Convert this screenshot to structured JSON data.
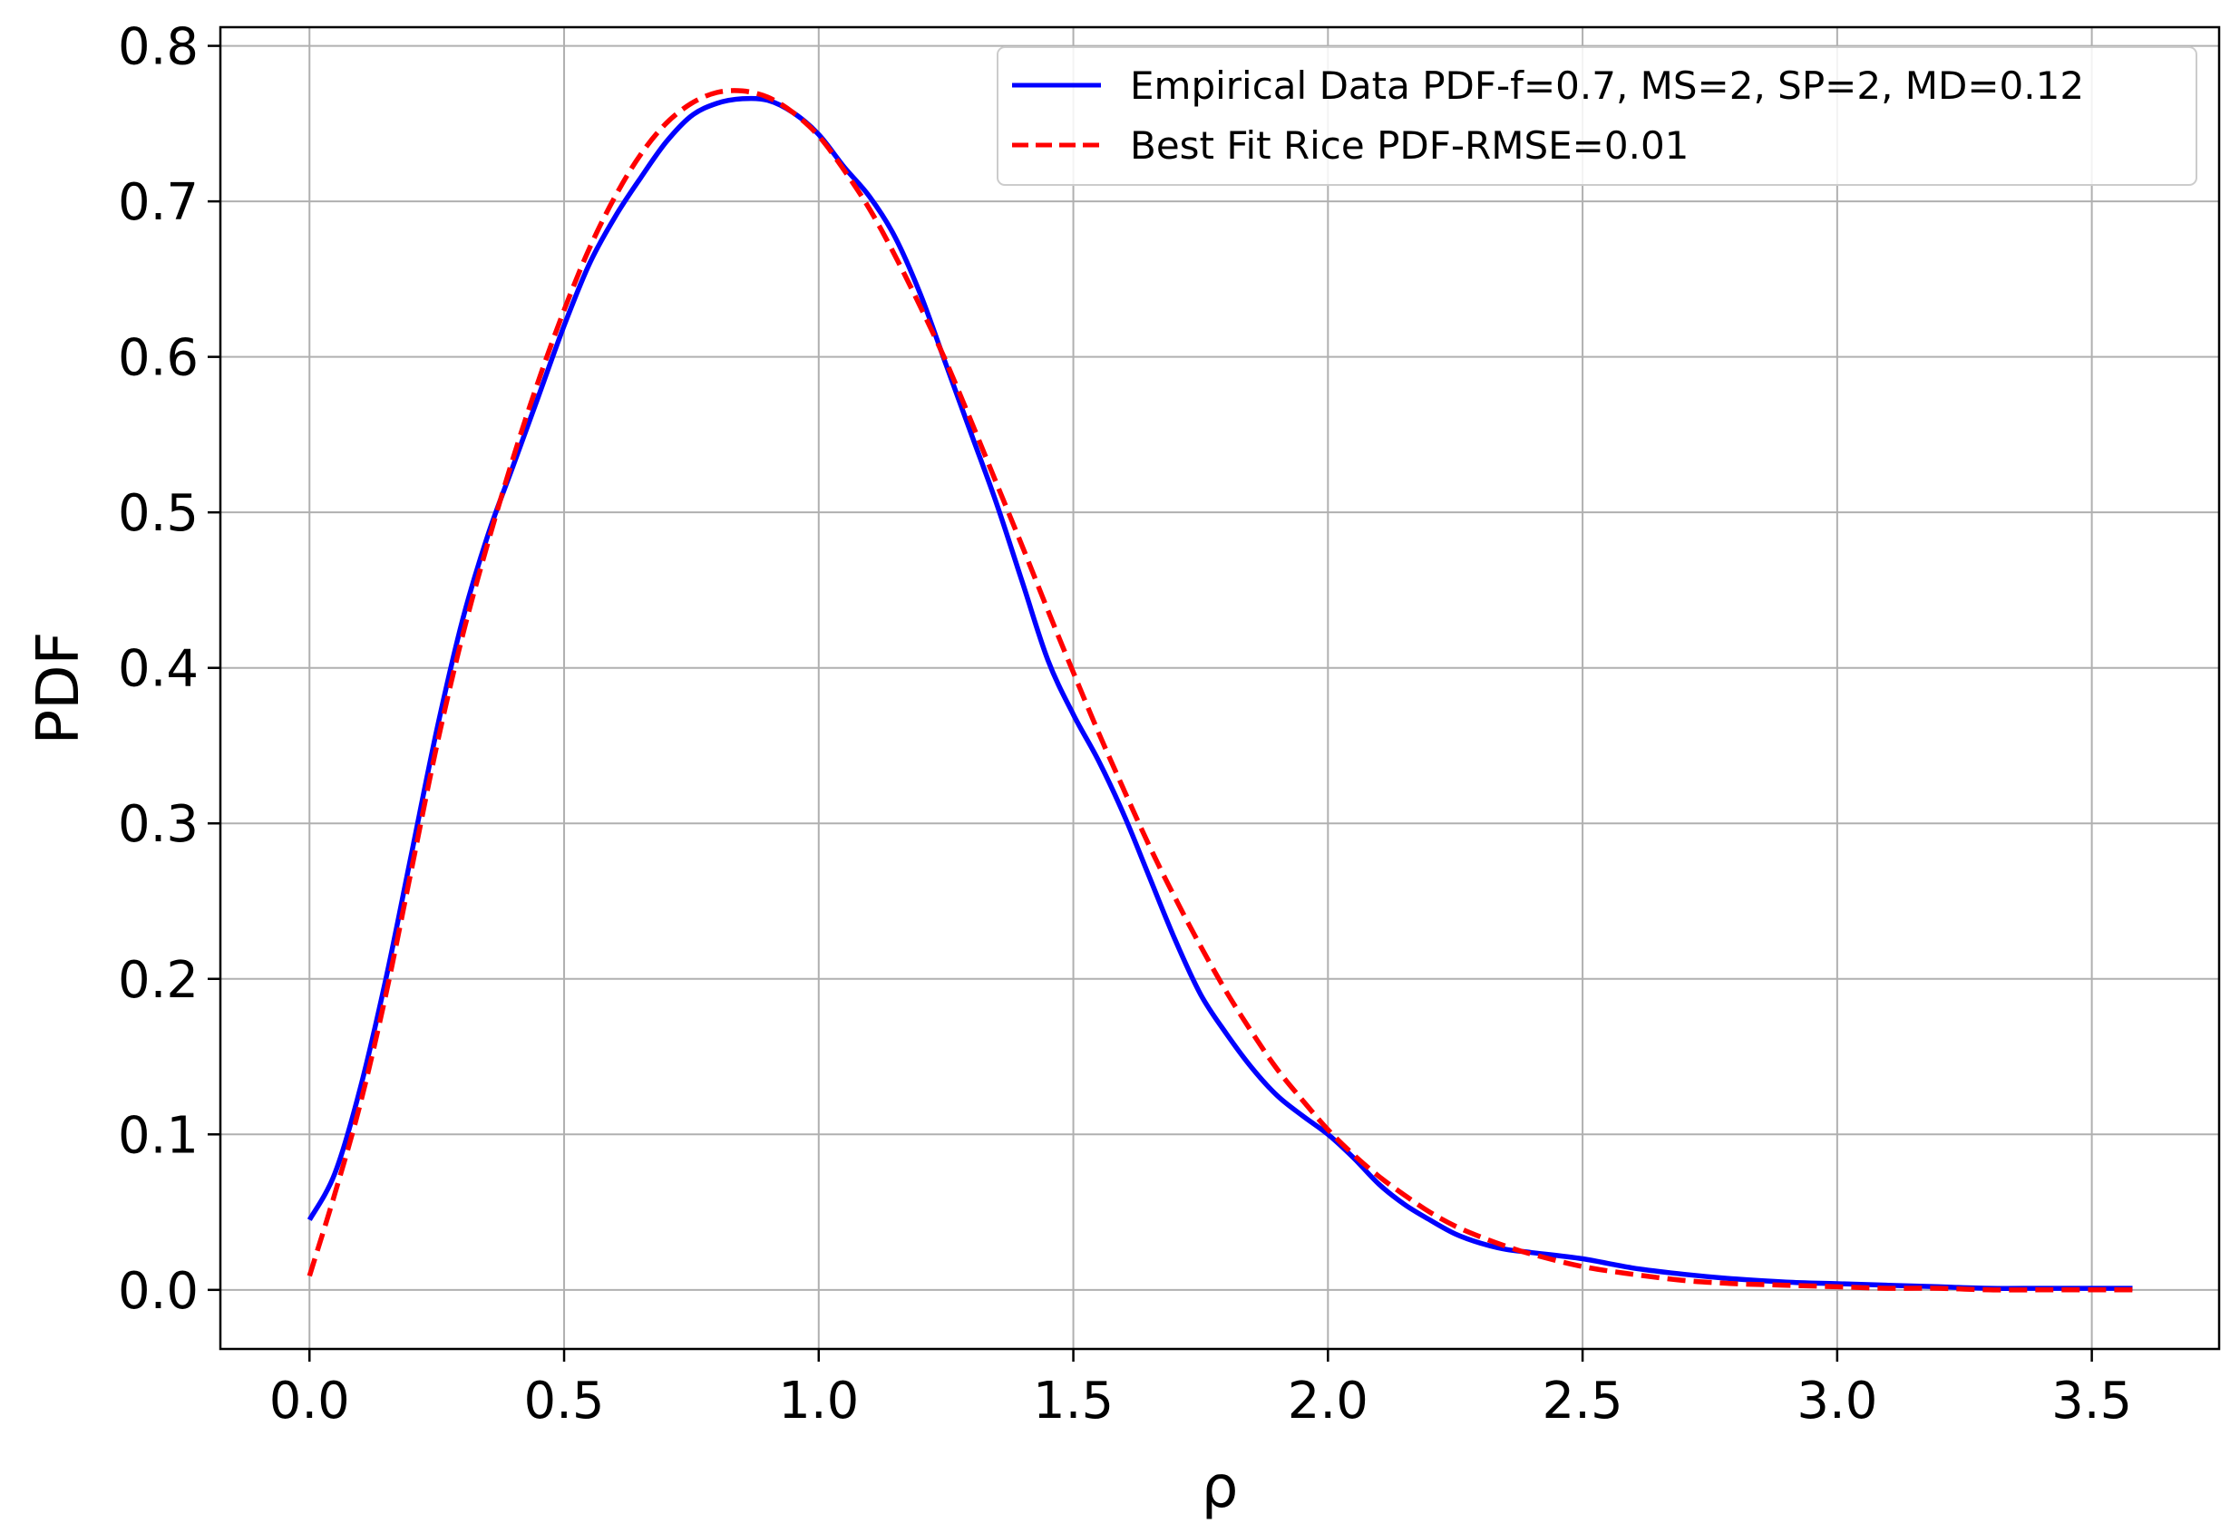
{
  "chart_data": {
    "type": "line",
    "xlabel": "ρ",
    "ylabel": "PDF",
    "xlim": [
      -0.175,
      3.75
    ],
    "ylim": [
      -0.038,
      0.812
    ],
    "xticks": [
      0.0,
      0.5,
      1.0,
      1.5,
      2.0,
      2.5,
      3.0,
      3.5
    ],
    "xtick_labels": [
      "0.0",
      "0.5",
      "1.0",
      "1.5",
      "2.0",
      "2.5",
      "3.0",
      "3.5"
    ],
    "yticks": [
      0.0,
      0.1,
      0.2,
      0.3,
      0.4,
      0.5,
      0.6,
      0.7,
      0.8
    ],
    "ytick_labels": [
      "0.0",
      "0.1",
      "0.2",
      "0.3",
      "0.4",
      "0.5",
      "0.6",
      "0.7",
      "0.8"
    ],
    "grid": true,
    "legend_position": "top-right",
    "series": [
      {
        "name": "Empirical Data PDF-f=0.7, MS=2, SP=2, MD=0.12",
        "color": "#0000ff",
        "style": "solid",
        "x": [
          0.0,
          0.05,
          0.1,
          0.15,
          0.2,
          0.25,
          0.3,
          0.35,
          0.4,
          0.45,
          0.5,
          0.55,
          0.6,
          0.65,
          0.7,
          0.75,
          0.8,
          0.85,
          0.9,
          0.95,
          1.0,
          1.05,
          1.1,
          1.15,
          1.2,
          1.25,
          1.3,
          1.35,
          1.4,
          1.45,
          1.5,
          1.55,
          1.6,
          1.65,
          1.7,
          1.75,
          1.8,
          1.85,
          1.9,
          1.95,
          2.0,
          2.05,
          2.1,
          2.15,
          2.2,
          2.25,
          2.3,
          2.35,
          2.4,
          2.5,
          2.6,
          2.7,
          2.8,
          2.9,
          3.0,
          3.1,
          3.2,
          3.3,
          3.4,
          3.5,
          3.58
        ],
        "y": [
          0.045,
          0.075,
          0.13,
          0.2,
          0.28,
          0.36,
          0.43,
          0.485,
          0.53,
          0.575,
          0.62,
          0.66,
          0.69,
          0.715,
          0.738,
          0.755,
          0.763,
          0.766,
          0.765,
          0.757,
          0.743,
          0.722,
          0.703,
          0.677,
          0.64,
          0.595,
          0.55,
          0.505,
          0.455,
          0.405,
          0.37,
          0.34,
          0.305,
          0.265,
          0.225,
          0.19,
          0.165,
          0.143,
          0.125,
          0.112,
          0.1,
          0.085,
          0.068,
          0.055,
          0.045,
          0.036,
          0.03,
          0.026,
          0.024,
          0.02,
          0.014,
          0.01,
          0.007,
          0.005,
          0.004,
          0.003,
          0.002,
          0.001,
          0.001,
          0.001,
          0.001
        ]
      },
      {
        "name": "Best Fit Rice PDF-RMSE=0.01",
        "color": "#ff0000",
        "style": "dashed",
        "x": [
          0.0,
          0.05,
          0.1,
          0.15,
          0.2,
          0.25,
          0.3,
          0.35,
          0.4,
          0.45,
          0.5,
          0.55,
          0.6,
          0.65,
          0.7,
          0.75,
          0.8,
          0.85,
          0.9,
          0.95,
          1.0,
          1.05,
          1.1,
          1.15,
          1.2,
          1.25,
          1.3,
          1.35,
          1.4,
          1.45,
          1.5,
          1.55,
          1.6,
          1.65,
          1.7,
          1.75,
          1.8,
          1.85,
          1.9,
          1.95,
          2.0,
          2.05,
          2.1,
          2.15,
          2.2,
          2.25,
          2.3,
          2.35,
          2.4,
          2.5,
          2.6,
          2.7,
          2.8,
          2.9,
          3.0,
          3.1,
          3.2,
          3.3,
          3.4,
          3.5,
          3.58
        ],
        "y": [
          0.009,
          0.062,
          0.12,
          0.19,
          0.27,
          0.35,
          0.42,
          0.48,
          0.535,
          0.585,
          0.63,
          0.67,
          0.703,
          0.73,
          0.75,
          0.763,
          0.77,
          0.771,
          0.767,
          0.757,
          0.742,
          0.72,
          0.695,
          0.665,
          0.632,
          0.597,
          0.558,
          0.518,
          0.478,
          0.437,
          0.397,
          0.358,
          0.321,
          0.285,
          0.252,
          0.221,
          0.192,
          0.166,
          0.142,
          0.122,
          0.103,
          0.087,
          0.073,
          0.061,
          0.05,
          0.041,
          0.034,
          0.028,
          0.023,
          0.015,
          0.01,
          0.006,
          0.004,
          0.003,
          0.002,
          0.001,
          0.001,
          0.0,
          0.0,
          0.0,
          0.0
        ]
      }
    ]
  }
}
